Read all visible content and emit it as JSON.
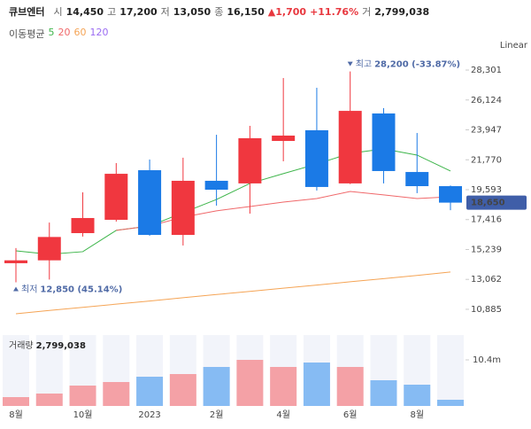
{
  "header": {
    "name": "큐브엔터",
    "quotes": [
      {
        "label": "시",
        "value": "14,450"
      },
      {
        "label": "고",
        "value": "17,200"
      },
      {
        "label": "저",
        "value": "13,050"
      },
      {
        "label": "종",
        "value": "16,150"
      }
    ],
    "change": "▲1,700",
    "change_pct": "+11.76%",
    "volume_label": "거",
    "volume": "2,799,038"
  },
  "chart_data": {
    "type": "candlestick",
    "ma_title": "이동평균",
    "scale_mode": "Linear",
    "categories": [
      "8월",
      null,
      "10월",
      null,
      "2023",
      null,
      "2월",
      null,
      "4월",
      null,
      "6월",
      null,
      "8월",
      null
    ],
    "open": [
      14240,
      14450,
      16430,
      17400,
      21010,
      16300,
      20240,
      20050,
      23140,
      23920,
      20050,
      25140,
      20880,
      19850
    ],
    "high": [
      15340,
      17200,
      19400,
      21530,
      21790,
      21920,
      23590,
      24240,
      27720,
      27010,
      28200,
      25530,
      23720,
      19900
    ],
    "low": [
      12850,
      13050,
      16180,
      17270,
      16240,
      15530,
      18430,
      17850,
      21660,
      19530,
      20000,
      20050,
      19340,
      18100
    ],
    "close": [
      14450,
      16150,
      17530,
      20750,
      16300,
      20240,
      19590,
      23340,
      23530,
      19790,
      25330,
      20950,
      19850,
      18650
    ],
    "up_color": "#f0373f",
    "down_color": "#1b7ae6",
    "volume_up_color": "#f4a1a6",
    "volume_down_color": "#86bbf3",
    "volume": [
      2000000,
      2799038,
      4600000,
      5400000,
      6600000,
      7200000,
      8800000,
      10400000,
      8800000,
      9800000,
      8800000,
      5800000,
      4800000,
      1400000
    ],
    "volume_title": "거래량",
    "ylim": [
      9850,
      29400
    ],
    "yticks": [
      {
        "value": 28301,
        "label": "28,301"
      },
      {
        "value": 26124,
        "label": "26,124"
      },
      {
        "value": 23947,
        "label": "23,947"
      },
      {
        "value": 21770,
        "label": "21,770"
      },
      {
        "value": 19593,
        "label": "19,593"
      },
      {
        "value": 17416,
        "label": "17,416"
      },
      {
        "value": 15239,
        "label": "15,239"
      },
      {
        "value": 13062,
        "label": "13,062"
      },
      {
        "value": 10885,
        "label": "10,885"
      }
    ],
    "volume_ylim": [
      0,
      16000000
    ],
    "volume_ticks": [
      {
        "value": 10400000,
        "label": "10.4m"
      }
    ],
    "last_price_label": "18,650",
    "max_marker": {
      "label": "최고",
      "text": "28,200 (-33.87%)",
      "index": 10
    },
    "min_marker": {
      "label": "최저",
      "text": "12,850 (45.14%)",
      "index": 0
    },
    "moving_averages": [
      {
        "name": "5",
        "color": "#3db54a",
        "values": [
          15140,
          14890,
          15080,
          16630,
          16950,
          17920,
          18880,
          20050,
          20760,
          21460,
          22240,
          22560,
          22110,
          20950
        ]
      },
      {
        "name": "20",
        "color": "#f0686a",
        "values": [
          null,
          null,
          null,
          16630,
          16950,
          17590,
          18050,
          18370,
          18690,
          18950,
          19460,
          19210,
          18950,
          19080
        ]
      },
      {
        "name": "60",
        "color": "#f5a455",
        "values": [
          10560,
          10800,
          11030,
          11260,
          11490,
          11730,
          11960,
          12190,
          12420,
          12650,
          12890,
          13120,
          13350,
          13600
        ]
      },
      {
        "name": "120",
        "color": "#9b6cf2",
        "values": [
          null,
          null,
          null,
          null,
          null,
          null,
          null,
          null,
          null,
          null,
          null,
          null,
          null,
          null
        ]
      }
    ]
  }
}
